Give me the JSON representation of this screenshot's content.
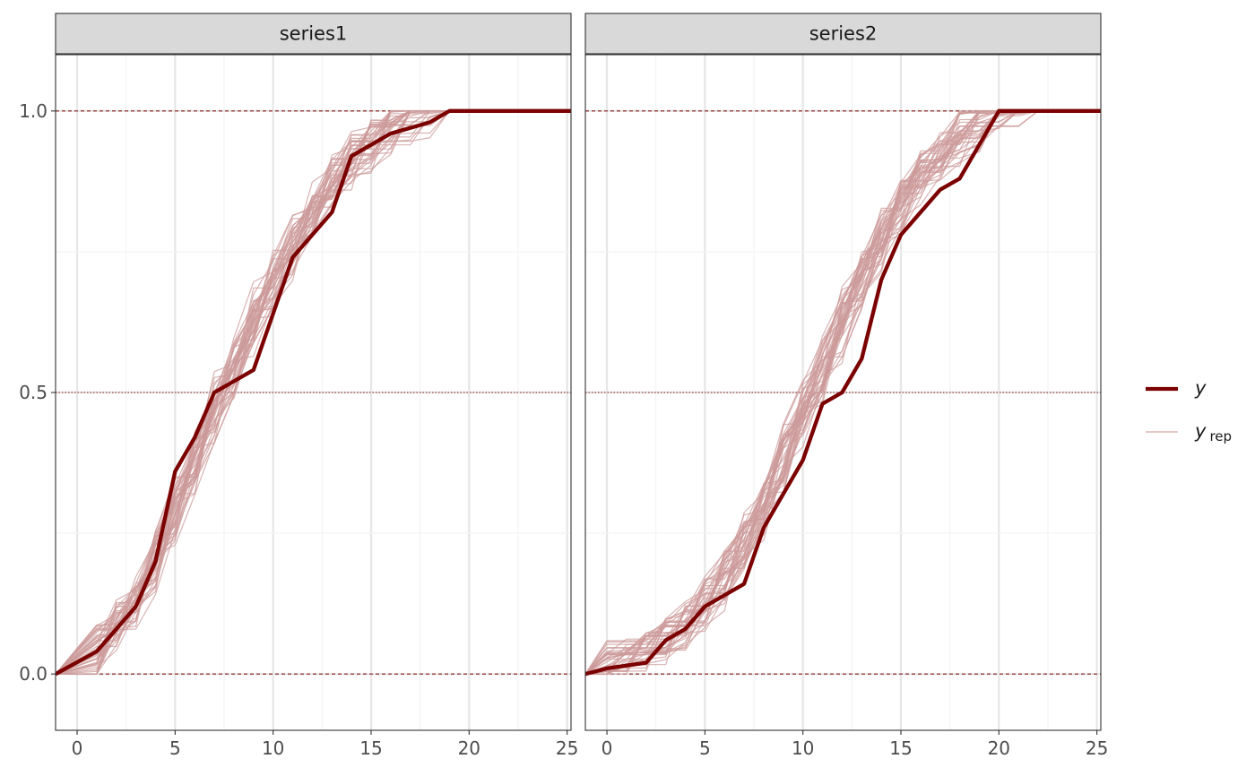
{
  "chart_data": {
    "type": "line",
    "colors": {
      "y": "#7b0000",
      "yrep": "#cc9999",
      "ref": "#8b1a1a",
      "strip_bg": "#d9d9d9"
    },
    "xlim": [
      -1.1,
      25.2
    ],
    "ylim": [
      -0.1,
      1.1
    ],
    "x_ticks": [
      0,
      5,
      10,
      15,
      20,
      25
    ],
    "x_tick_labels": [
      "0",
      "5",
      "10",
      "15",
      "20",
      "25"
    ],
    "y_ticks": [
      0,
      0.5,
      1
    ],
    "y_tick_labels": [
      "0.0",
      "0.5",
      "1.0"
    ],
    "reference_lines": [
      0,
      0.5,
      1
    ],
    "grid": true,
    "legend": {
      "position": "right",
      "items": [
        {
          "key": "y",
          "label": "y",
          "sub": ""
        },
        {
          "key": "yrep",
          "label": "y",
          "sub": "rep"
        }
      ]
    },
    "panels": [
      {
        "strip": "series1",
        "y": [
          {
            "x": -1.1,
            "y": 0
          },
          {
            "x": 1,
            "y": 0.04
          },
          {
            "x": 2,
            "y": 0.08
          },
          {
            "x": 3,
            "y": 0.12
          },
          {
            "x": 4,
            "y": 0.2
          },
          {
            "x": 5,
            "y": 0.36
          },
          {
            "x": 6,
            "y": 0.42
          },
          {
            "x": 7,
            "y": 0.5
          },
          {
            "x": 9,
            "y": 0.54
          },
          {
            "x": 11,
            "y": 0.74
          },
          {
            "x": 13,
            "y": 0.82
          },
          {
            "x": 14,
            "y": 0.92
          },
          {
            "x": 16,
            "y": 0.96
          },
          {
            "x": 18,
            "y": 0.98
          },
          {
            "x": 19,
            "y": 1
          },
          {
            "x": 25.2,
            "y": 1
          }
        ],
        "yrep": {
          "count": 40,
          "spread": 0.05,
          "median": [
            {
              "x": -1.1,
              "y": 0
            },
            {
              "x": 1,
              "y": 0.04
            },
            {
              "x": 2,
              "y": 0.08
            },
            {
              "x": 3,
              "y": 0.13
            },
            {
              "x": 4,
              "y": 0.2
            },
            {
              "x": 5,
              "y": 0.29
            },
            {
              "x": 6,
              "y": 0.38
            },
            {
              "x": 7,
              "y": 0.47
            },
            {
              "x": 8,
              "y": 0.55
            },
            {
              "x": 9,
              "y": 0.63
            },
            {
              "x": 10,
              "y": 0.7
            },
            {
              "x": 11,
              "y": 0.76
            },
            {
              "x": 12,
              "y": 0.82
            },
            {
              "x": 13,
              "y": 0.87
            },
            {
              "x": 14,
              "y": 0.91
            },
            {
              "x": 15,
              "y": 0.94
            },
            {
              "x": 16,
              "y": 0.97
            },
            {
              "x": 17,
              "y": 0.985
            },
            {
              "x": 18,
              "y": 0.995
            },
            {
              "x": 19,
              "y": 1
            },
            {
              "x": 25.2,
              "y": 1
            }
          ]
        }
      },
      {
        "strip": "series2",
        "y": [
          {
            "x": -1.1,
            "y": 0
          },
          {
            "x": 0,
            "y": 0.01
          },
          {
            "x": 2,
            "y": 0.02
          },
          {
            "x": 3,
            "y": 0.06
          },
          {
            "x": 4,
            "y": 0.08
          },
          {
            "x": 5,
            "y": 0.12
          },
          {
            "x": 7,
            "y": 0.16
          },
          {
            "x": 8,
            "y": 0.26
          },
          {
            "x": 10,
            "y": 0.38
          },
          {
            "x": 11,
            "y": 0.48
          },
          {
            "x": 12,
            "y": 0.5
          },
          {
            "x": 13,
            "y": 0.56
          },
          {
            "x": 14,
            "y": 0.7
          },
          {
            "x": 15,
            "y": 0.78
          },
          {
            "x": 17,
            "y": 0.86
          },
          {
            "x": 18,
            "y": 0.88
          },
          {
            "x": 20,
            "y": 1
          },
          {
            "x": 25.2,
            "y": 1
          }
        ],
        "yrep": {
          "count": 40,
          "spread": 0.05,
          "median": [
            {
              "x": -1.1,
              "y": 0
            },
            {
              "x": 0,
              "y": 0.01
            },
            {
              "x": 1,
              "y": 0.02
            },
            {
              "x": 2,
              "y": 0.03
            },
            {
              "x": 3,
              "y": 0.05
            },
            {
              "x": 4,
              "y": 0.08
            },
            {
              "x": 5,
              "y": 0.12
            },
            {
              "x": 6,
              "y": 0.17
            },
            {
              "x": 7,
              "y": 0.23
            },
            {
              "x": 8,
              "y": 0.3
            },
            {
              "x": 9,
              "y": 0.38
            },
            {
              "x": 10,
              "y": 0.46
            },
            {
              "x": 11,
              "y": 0.54
            },
            {
              "x": 12,
              "y": 0.62
            },
            {
              "x": 13,
              "y": 0.7
            },
            {
              "x": 14,
              "y": 0.77
            },
            {
              "x": 15,
              "y": 0.83
            },
            {
              "x": 16,
              "y": 0.88
            },
            {
              "x": 17,
              "y": 0.92
            },
            {
              "x": 18,
              "y": 0.95
            },
            {
              "x": 19,
              "y": 0.975
            },
            {
              "x": 20,
              "y": 0.99
            },
            {
              "x": 21,
              "y": 0.995
            },
            {
              "x": 22,
              "y": 1
            },
            {
              "x": 25.2,
              "y": 1
            }
          ]
        }
      }
    ]
  }
}
